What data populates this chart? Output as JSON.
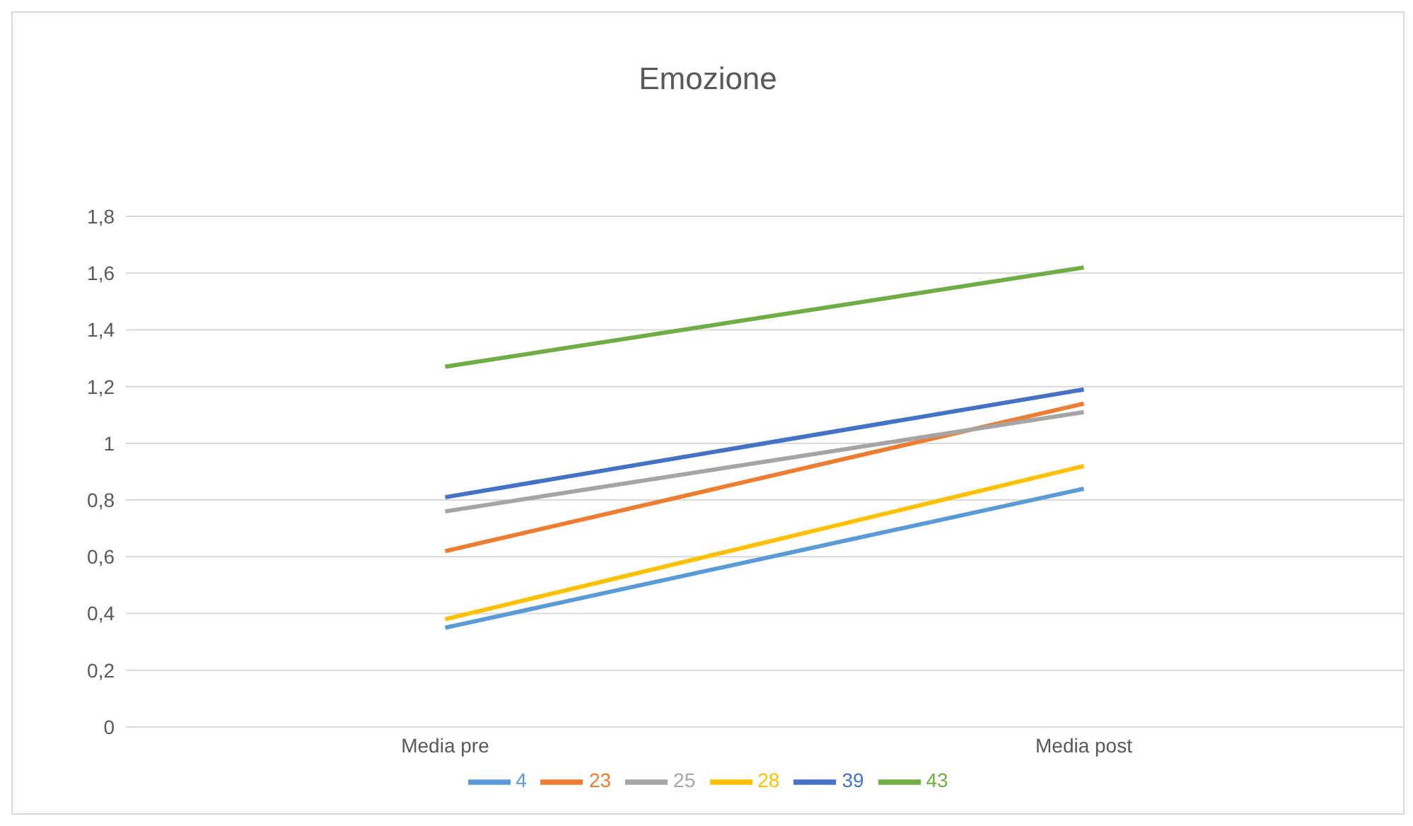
{
  "chart_data": {
    "type": "line",
    "title": "Emozione",
    "categories": [
      "Media pre",
      "Media post"
    ],
    "series": [
      {
        "name": "4",
        "color": "#5b9bd5",
        "values": [
          0.35,
          0.84
        ]
      },
      {
        "name": "23",
        "color": "#ed7d31",
        "values": [
          0.62,
          1.14
        ]
      },
      {
        "name": "25",
        "color": "#a5a5a5",
        "values": [
          0.76,
          1.11
        ]
      },
      {
        "name": "28",
        "color": "#ffc000",
        "values": [
          0.38,
          0.92
        ]
      },
      {
        "name": "39",
        "color": "#4472c4",
        "values": [
          0.81,
          1.19
        ]
      },
      {
        "name": "43",
        "color": "#70ad47",
        "values": [
          1.27,
          1.62
        ]
      }
    ],
    "ylim": [
      0,
      1.8
    ],
    "yticks": [
      {
        "value": 0,
        "label": "0"
      },
      {
        "value": 0.2,
        "label": "0,2"
      },
      {
        "value": 0.4,
        "label": "0,4"
      },
      {
        "value": 0.6,
        "label": "0,6"
      },
      {
        "value": 0.8,
        "label": "0,8"
      },
      {
        "value": 1,
        "label": "1"
      },
      {
        "value": 1.2,
        "label": "1,2"
      },
      {
        "value": 1.4,
        "label": "1,4"
      },
      {
        "value": 1.6,
        "label": "1,6"
      },
      {
        "value": 1.8,
        "label": "1,8"
      }
    ],
    "grid": "y",
    "legend": "bottom",
    "marker": "none",
    "line_style": "solid"
  }
}
